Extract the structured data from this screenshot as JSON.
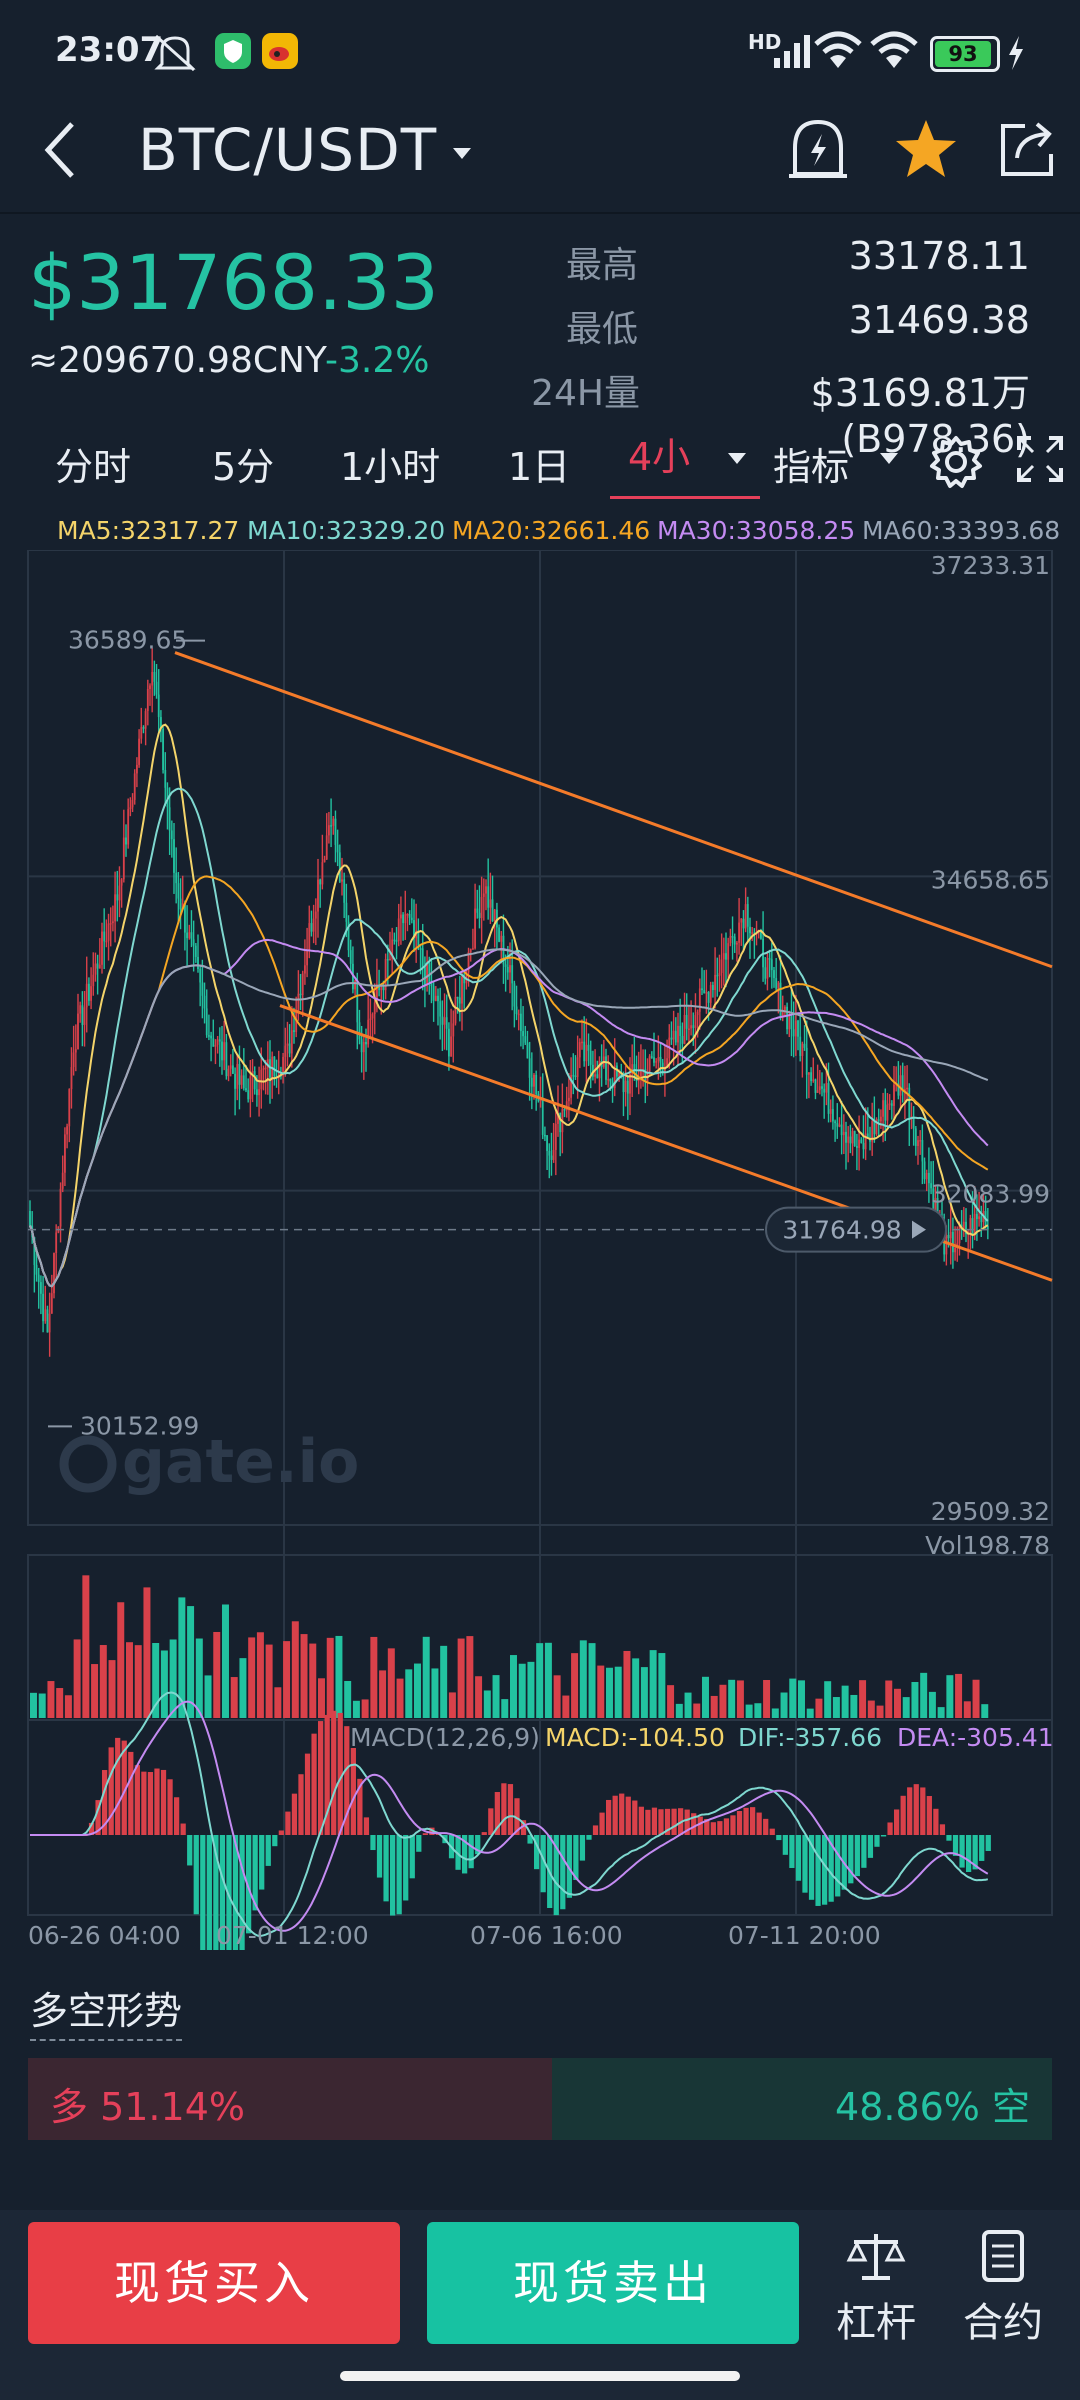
{
  "status_bar": {
    "time": "23:07",
    "network": "HD",
    "battery": "93"
  },
  "header": {
    "pair": "BTC/USDT"
  },
  "ticker": {
    "price": "$31768.33",
    "cny": "≈209670.98CNY",
    "change": "-3.2%",
    "high_label": "最高",
    "high_value": "33178.11",
    "low_label": "最低",
    "low_value": "31469.38",
    "vol_label": "24H量",
    "vol_value": "$3169.81万(B978.36)"
  },
  "timeframes": {
    "t1": "分时",
    "t2": "5分",
    "t3": "1小时",
    "t4": "1日",
    "t5": "4小",
    "indicator": "指标"
  },
  "ma_labels": {
    "ma5": "MA5:32317.27",
    "ma10": "MA10:32329.20",
    "ma20": "MA20:32661.46",
    "ma30": "MA30:33058.25",
    "ma60": "MA60:33393.68"
  },
  "chart_data": {
    "type": "candlestick",
    "pair": "BTC/USDT",
    "interval": "4小",
    "y_axis_labels": [
      "37233.31",
      "34658.65",
      "32083.99",
      "29509.32"
    ],
    "ylim": [
      29509.32,
      37233.31
    ],
    "current_price_tag": "31764.98",
    "annotations": {
      "max": "36589.65",
      "min": "30152.99"
    },
    "x_tick_labels": [
      "06-26 04:00",
      "07-01 12:00",
      "07-06 16:00",
      "07-11 20:00"
    ],
    "volume_label": "Vol198.78",
    "macd": {
      "params": "MACD(12,26,9)",
      "macd": "MACD:-104.50",
      "dif": "DIF:-357.66",
      "dea": "DEA:-305.41"
    },
    "colors": {
      "up": "#d9414a",
      "down": "#22c2a0",
      "ma5": "#f4d46a",
      "ma10": "#7fd8d0",
      "ma20": "#f5a623",
      "ma30": "#c48bf2",
      "ma60": "#9aa7b8",
      "trendline": "#f47b2a"
    }
  },
  "watermark": "gate.io",
  "sentiment": {
    "title": "多空形势",
    "long": "多 51.14%",
    "short": "48.86% 空",
    "long_ratio": 0.5114
  },
  "bottom": {
    "buy": "现货买入",
    "sell": "现货卖出",
    "margin": "杠杆",
    "contract": "合约"
  }
}
